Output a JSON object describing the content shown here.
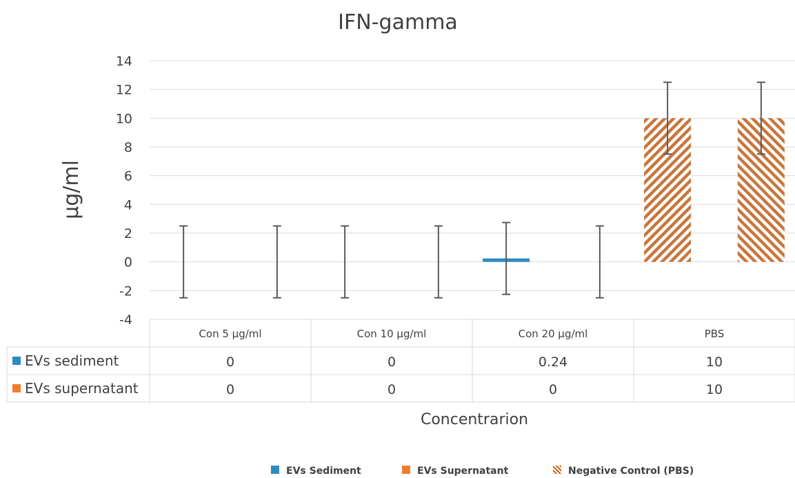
{
  "chart_data": {
    "type": "bar",
    "title": "IFN-gamma",
    "ylabel": "µg/ml",
    "xlabel": "Concentrarion",
    "ylim": [
      -4,
      14
    ],
    "yticks": [
      14,
      12,
      10,
      8,
      6,
      4,
      2,
      0,
      -2,
      -4
    ],
    "grid": true,
    "categories": [
      "Con 5  µg/ml",
      "Con 10  µg/ml",
      "Con 20 µg/ml",
      "PBS"
    ],
    "series": [
      {
        "name": "EVs sediment",
        "values": [
          0,
          0,
          0.24,
          10
        ],
        "error": [
          2.5,
          2.5,
          2.5,
          2.5
        ],
        "color": "#2E8BC0",
        "value_labels": [
          "0",
          "0",
          "0.24",
          "10"
        ]
      },
      {
        "name": "EVs supernatant",
        "values": [
          0,
          0,
          0,
          10
        ],
        "error": [
          2.5,
          2.5,
          2.5,
          2.5
        ],
        "color": "#ED7D31",
        "value_labels": [
          "0",
          "0",
          "0",
          "10"
        ]
      }
    ],
    "data_table": true,
    "legend": {
      "placement": "bottom",
      "entries": [
        {
          "label": "EVs Sediment",
          "color": "#2E8BC0",
          "pattern": "solid"
        },
        {
          "label": "EVs Supernatant",
          "color": "#ED7D31",
          "pattern": "solid"
        },
        {
          "label": "Negative Control (PBS)",
          "color": "#C55A11",
          "pattern": "diagonal-stripes"
        }
      ]
    },
    "hatched_category": "PBS"
  }
}
